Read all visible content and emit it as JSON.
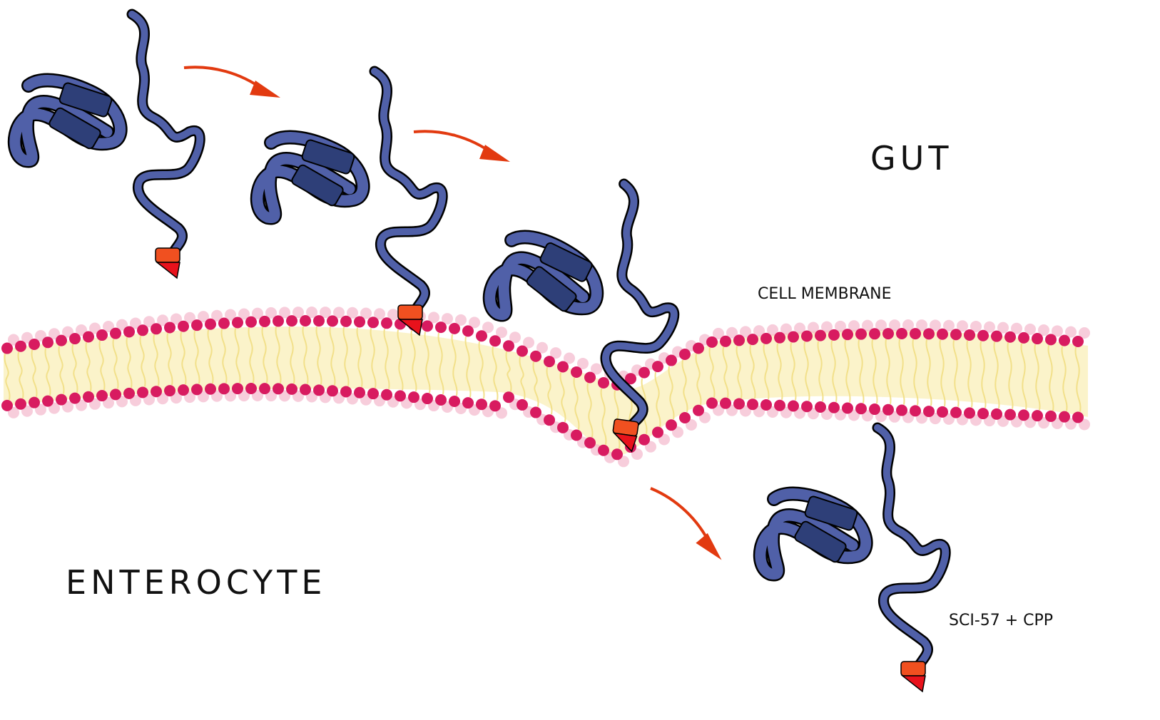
{
  "labels": {
    "gut": "GUT",
    "enterocyte": "ENTEROCYTE",
    "membrane": "CELL MEMBRANE",
    "molecule": "SCI-57 + CPP"
  },
  "colors": {
    "protein": "#5060a8",
    "protein_dark": "#2e3f78",
    "tag": "#f05020",
    "tag_tip": "#e8121c",
    "arrow": "#e23a10",
    "lipid_head": "#d81b60",
    "lipid_head_faint": "#f3b8cc",
    "lipid_tail": "#f2e08a",
    "membrane_fill": "#fbf2c4"
  },
  "molecules": [
    {
      "stage": "in gut"
    },
    {
      "stage": "approaching membrane"
    },
    {
      "stage": "crossing membrane"
    },
    {
      "stage": "inside enterocyte"
    }
  ],
  "arrows": [
    {
      "from": "molecule 1",
      "to": "molecule 2"
    },
    {
      "from": "molecule 2",
      "to": "molecule 3"
    },
    {
      "from": "molecule 3",
      "to": "molecule 4"
    }
  ]
}
